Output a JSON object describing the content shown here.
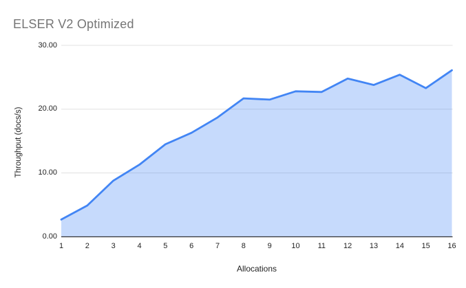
{
  "chart_data": {
    "type": "area",
    "title": "ELSER V2 Optimized",
    "xlabel": "Allocations",
    "ylabel": "Throughput (docs/s)",
    "x": [
      1,
      2,
      3,
      4,
      5,
      6,
      7,
      8,
      9,
      10,
      11,
      12,
      13,
      14,
      15,
      16
    ],
    "xtick_labels": [
      "1",
      "2",
      "3",
      "4",
      "5",
      "6",
      "7",
      "8",
      "9",
      "10",
      "11",
      "12",
      "13",
      "14",
      "15",
      "16"
    ],
    "series": [
      {
        "name": "Throughput (docs/s)",
        "values": [
          2.7,
          4.9,
          8.8,
          11.3,
          14.5,
          16.3,
          18.7,
          21.7,
          21.5,
          22.8,
          22.7,
          24.8,
          23.8,
          25.4,
          23.3,
          26.1
        ]
      }
    ],
    "ylim": [
      0,
      30
    ],
    "yticks": [
      0,
      10,
      20,
      30
    ],
    "ytick_labels": [
      "0.00",
      "10.00",
      "20.00",
      "30.00"
    ],
    "grid": "horizontal-only",
    "legend": "none",
    "colors": {
      "line": "#4285f4",
      "fill": "rgba(66,133,244,0.3)",
      "gridline": "#e0e0e0",
      "axis_line": "#333333",
      "title_text": "#757575",
      "tick_text": "#222222"
    }
  }
}
